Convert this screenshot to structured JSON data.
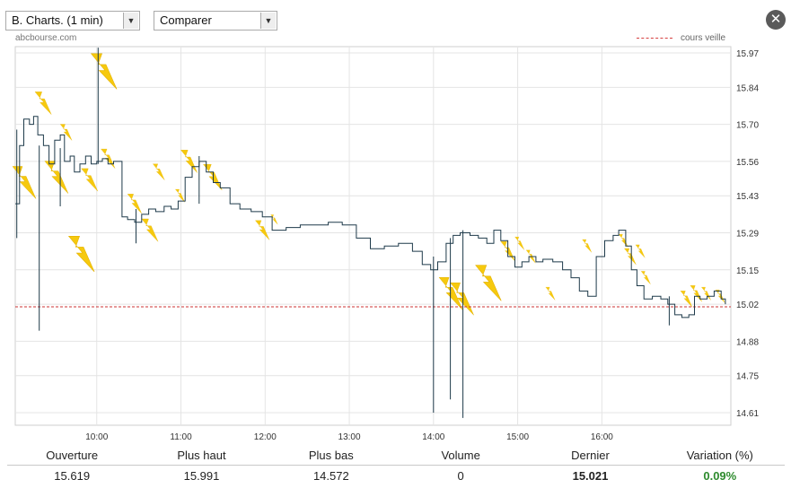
{
  "toolbar": {
    "chart_type": "B. Charts. (1 min)",
    "compare": "Comparer",
    "close_icon": "close-icon"
  },
  "source_label": "abcbourse.com",
  "legend": {
    "prev_close_label": "cours veille",
    "prev_close_color": "#cc3333"
  },
  "chart_data": {
    "type": "line",
    "title": "",
    "x_ticks": [
      "10:00",
      "11:00",
      "12:00",
      "13:00",
      "14:00",
      "15:00",
      "16:00"
    ],
    "y_ticks": [
      "15.97",
      "15.84",
      "15.70",
      "15.56",
      "15.43",
      "15.29",
      "15.15",
      "15.02",
      "14.88",
      "14.75",
      "14.61"
    ],
    "ylim": [
      14.61,
      15.97
    ],
    "xlim": [
      "09:00",
      "17:30"
    ],
    "previous_close": 15.01,
    "series": [
      {
        "values": [
          [
            "09:02",
            15.4
          ],
          [
            "09:05",
            15.62
          ],
          [
            "09:08",
            15.72
          ],
          [
            "09:12",
            15.7
          ],
          [
            "09:15",
            15.73
          ],
          [
            "09:18",
            15.66
          ],
          [
            "09:22",
            15.62
          ],
          [
            "09:26",
            15.55
          ],
          [
            "09:30",
            15.64
          ],
          [
            "09:34",
            15.66
          ],
          [
            "09:37",
            15.56
          ],
          [
            "09:41",
            15.58
          ],
          [
            "09:44",
            15.52
          ],
          [
            "09:48",
            15.55
          ],
          [
            "09:52",
            15.58
          ],
          [
            "09:56",
            15.55
          ],
          [
            "10:00",
            15.56
          ],
          [
            "10:04",
            15.57
          ],
          [
            "10:08",
            15.55
          ],
          [
            "10:12",
            15.56
          ],
          [
            "10:18",
            15.35
          ],
          [
            "10:22",
            15.34
          ],
          [
            "10:27",
            15.33
          ],
          [
            "10:32",
            15.36
          ],
          [
            "10:37",
            15.38
          ],
          [
            "10:42",
            15.37
          ],
          [
            "10:48",
            15.39
          ],
          [
            "10:53",
            15.38
          ],
          [
            "10:58",
            15.41
          ],
          [
            "11:03",
            15.5
          ],
          [
            "11:08",
            15.54
          ],
          [
            "11:13",
            15.56
          ],
          [
            "11:18",
            15.52
          ],
          [
            "11:23",
            15.48
          ],
          [
            "11:28",
            15.46
          ],
          [
            "11:35",
            15.4
          ],
          [
            "11:42",
            15.38
          ],
          [
            "11:50",
            15.37
          ],
          [
            "11:58",
            15.35
          ],
          [
            "12:05",
            15.3
          ],
          [
            "12:15",
            15.31
          ],
          [
            "12:25",
            15.32
          ],
          [
            "12:35",
            15.32
          ],
          [
            "12:45",
            15.33
          ],
          [
            "12:55",
            15.32
          ],
          [
            "13:05",
            15.27
          ],
          [
            "13:15",
            15.23
          ],
          [
            "13:25",
            15.24
          ],
          [
            "13:35",
            15.25
          ],
          [
            "13:45",
            15.22
          ],
          [
            "13:52",
            15.17
          ],
          [
            "13:58",
            15.15
          ],
          [
            "14:03",
            15.18
          ],
          [
            "14:09",
            15.25
          ],
          [
            "14:14",
            15.28
          ],
          [
            "14:19",
            15.29
          ],
          [
            "14:26",
            15.28
          ],
          [
            "14:32",
            15.27
          ],
          [
            "14:38",
            15.25
          ],
          [
            "14:43",
            15.3
          ],
          [
            "14:48",
            15.26
          ],
          [
            "14:53",
            15.2
          ],
          [
            "14:58",
            15.16
          ],
          [
            "15:03",
            15.18
          ],
          [
            "15:08",
            15.2
          ],
          [
            "15:13",
            15.18
          ],
          [
            "15:18",
            15.19
          ],
          [
            "15:25",
            15.18
          ],
          [
            "15:32",
            15.15
          ],
          [
            "15:38",
            15.12
          ],
          [
            "15:44",
            15.07
          ],
          [
            "15:50",
            15.05
          ],
          [
            "15:56",
            15.2
          ],
          [
            "16:02",
            15.26
          ],
          [
            "16:08",
            15.28
          ],
          [
            "16:12",
            15.3
          ],
          [
            "16:17",
            15.24
          ],
          [
            "16:21",
            15.15
          ],
          [
            "16:25",
            15.09
          ],
          [
            "16:30",
            15.04
          ],
          [
            "16:36",
            15.05
          ],
          [
            "16:42",
            15.04
          ],
          [
            "16:47",
            15.02
          ],
          [
            "16:52",
            14.98
          ],
          [
            "16:57",
            14.97
          ],
          [
            "17:02",
            14.98
          ],
          [
            "17:06",
            15.05
          ],
          [
            "17:10",
            15.04
          ],
          [
            "17:15",
            15.05
          ],
          [
            "17:20",
            15.07
          ],
          [
            "17:25",
            15.04
          ],
          [
            "17:28",
            15.02
          ]
        ]
      }
    ],
    "spikes": [
      [
        "09:03",
        15.68,
        15.27
      ],
      [
        "09:19",
        15.62,
        14.92
      ],
      [
        "09:34",
        15.61,
        15.39
      ],
      [
        "10:01",
        15.99,
        15.55
      ],
      [
        "10:28",
        15.38,
        15.25
      ],
      [
        "11:13",
        15.58,
        15.4
      ],
      [
        "14:00",
        15.2,
        14.61
      ],
      [
        "14:12",
        15.27,
        14.66
      ],
      [
        "14:21",
        15.3,
        14.59
      ],
      [
        "16:48",
        15.05,
        14.94
      ]
    ],
    "markers": [
      [
        "09:00",
        15.48,
        1.0
      ],
      [
        "09:16",
        15.78,
        0.7
      ],
      [
        "09:23",
        15.5,
        1.0
      ],
      [
        "09:34",
        15.67,
        0.5
      ],
      [
        "09:49",
        15.49,
        0.7
      ],
      [
        "09:40",
        15.21,
        1.1
      ],
      [
        "09:56",
        15.9,
        1.1
      ],
      [
        "10:03",
        15.57,
        0.6
      ],
      [
        "10:22",
        15.4,
        0.6
      ],
      [
        "10:32",
        15.3,
        0.7
      ],
      [
        "10:40",
        15.52,
        0.5
      ],
      [
        "10:56",
        15.43,
        0.4
      ],
      [
        "11:00",
        15.56,
        0.7
      ],
      [
        "11:16",
        15.5,
        0.8
      ],
      [
        "11:53",
        15.3,
        0.6
      ],
      [
        "12:04",
        15.34,
        0.3
      ],
      [
        "14:04",
        15.06,
        1.0
      ],
      [
        "14:12",
        15.04,
        1.0
      ],
      [
        "14:30",
        15.1,
        1.1
      ],
      [
        "14:48",
        15.22,
        0.6
      ],
      [
        "14:58",
        15.25,
        0.4
      ],
      [
        "15:06",
        15.2,
        0.4
      ],
      [
        "15:20",
        15.06,
        0.4
      ],
      [
        "15:46",
        15.24,
        0.4
      ],
      [
        "16:12",
        15.26,
        0.4
      ],
      [
        "16:16",
        15.2,
        0.5
      ],
      [
        "16:24",
        15.22,
        0.4
      ],
      [
        "16:28",
        15.12,
        0.4
      ],
      [
        "16:56",
        15.04,
        0.5
      ],
      [
        "17:03",
        15.06,
        0.5
      ],
      [
        "17:11",
        15.06,
        0.4
      ],
      [
        "17:21",
        15.05,
        0.4
      ]
    ]
  },
  "stats": {
    "headers": {
      "open": "Ouverture",
      "high": "Plus haut",
      "low": "Plus bas",
      "volume": "Volume",
      "last": "Dernier",
      "change": "Variation (%)"
    },
    "values": {
      "open": "15.619",
      "high": "15.991",
      "low": "14.572",
      "volume": "0",
      "last": "15.021",
      "change": "0.09%"
    },
    "change_color": "#2e8b2e"
  }
}
